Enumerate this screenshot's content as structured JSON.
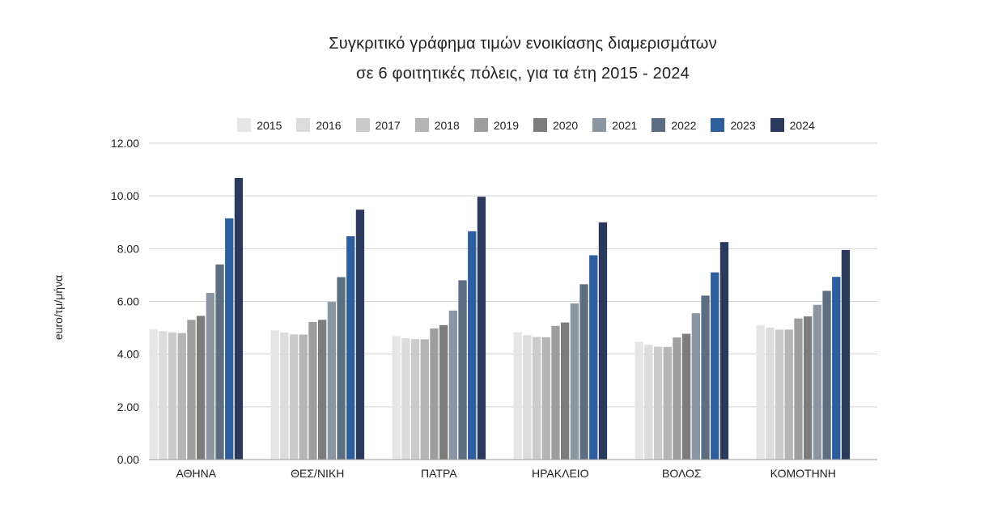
{
  "title_line1": "Συγκριτικό γράφημα τιμών ενοικίασης διαμερισμάτων",
  "title_line2": "σε 6 φοιτητικές πόλεις, για τα έτη 2015 - 2024",
  "chart_data": {
    "type": "bar",
    "title": "Συγκριτικό γράφημα τιμών ενοικίασης διαμερισμάτων σε 6 φοιτητικές πόλεις, για τα έτη 2015 - 2024",
    "xlabel": "",
    "ylabel": "euro/τμ/μήνα",
    "ylim": [
      0,
      12
    ],
    "yticks": [
      "0.00",
      "2.00",
      "4.00",
      "6.00",
      "8.00",
      "10.00",
      "12.00"
    ],
    "grid": true,
    "legend_position": "top",
    "categories": [
      "ΑΘΗΝΑ",
      "ΘΕΣ/ΝΙΚΗ",
      "ΠΑΤΡΑ",
      "ΗΡΑΚΛΕΙΟ",
      "ΒΟΛΟΣ",
      "ΚΟΜΟΤΗΝΗ"
    ],
    "series": [
      {
        "name": "2015",
        "color": "#e6e6e6",
        "values": [
          4.95,
          4.9,
          4.68,
          4.83,
          4.47,
          5.1
        ]
      },
      {
        "name": "2016",
        "color": "#dcdcdc",
        "values": [
          4.87,
          4.82,
          4.6,
          4.72,
          4.35,
          5.0
        ]
      },
      {
        "name": "2017",
        "color": "#cbcbcb",
        "values": [
          4.82,
          4.75,
          4.57,
          4.65,
          4.28,
          4.93
        ]
      },
      {
        "name": "2018",
        "color": "#b5b5b5",
        "values": [
          4.8,
          4.74,
          4.56,
          4.64,
          4.27,
          4.93
        ]
      },
      {
        "name": "2019",
        "color": "#9e9e9e",
        "values": [
          5.3,
          5.22,
          4.97,
          5.07,
          4.63,
          5.35
        ]
      },
      {
        "name": "2020",
        "color": "#7c7c7c",
        "values": [
          5.45,
          5.3,
          5.1,
          5.2,
          4.77,
          5.43
        ]
      },
      {
        "name": "2021",
        "color": "#8a96a2",
        "values": [
          6.32,
          5.98,
          5.65,
          5.92,
          5.55,
          5.87
        ]
      },
      {
        "name": "2022",
        "color": "#5d6e82",
        "values": [
          7.4,
          6.92,
          6.8,
          6.65,
          6.22,
          6.4
        ]
      },
      {
        "name": "2023",
        "color": "#2e5e9e",
        "values": [
          9.15,
          8.47,
          8.66,
          7.75,
          7.1,
          6.93
        ]
      },
      {
        "name": "2024",
        "color": "#2b3a5c",
        "values": [
          10.68,
          9.48,
          9.97,
          9.0,
          8.25,
          7.95
        ]
      }
    ]
  }
}
